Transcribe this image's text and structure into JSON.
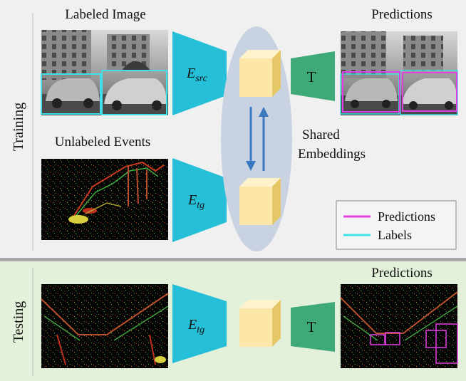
{
  "training": {
    "section_label": "Training",
    "labeled_image_title": "Labeled Image",
    "unlabeled_events_title": "Unlabeled Events",
    "predictions_title": "Predictions",
    "encoder_src": {
      "base": "E",
      "sub": "src"
    },
    "encoder_tg": {
      "base": "E",
      "sub": "tg"
    },
    "task_head": "T",
    "shared_label_line1": "Shared",
    "shared_label_line2": "Embeddings"
  },
  "legend": {
    "items": [
      {
        "label": "Predictions",
        "color": "#e040e0"
      },
      {
        "label": "Labels",
        "color": "#40e0e8"
      }
    ]
  },
  "testing": {
    "section_label": "Testing",
    "predictions_title": "Predictions",
    "encoder_tg": {
      "base": "E",
      "sub": "tg"
    },
    "task_head": "T"
  },
  "colors": {
    "training_bg": "#f0f0f0",
    "testing_bg": "#e3f0da",
    "encoder": "#25bfd8",
    "task_head": "#3faa78",
    "cube_front": "#fde7a8",
    "cube_side": "#e6c768",
    "cube_top": "#fff3cc",
    "ellipse": "#c8d2e0",
    "arrow": "#3a78c0",
    "prediction_box": "#e040e0",
    "label_box": "#40e0e8"
  }
}
